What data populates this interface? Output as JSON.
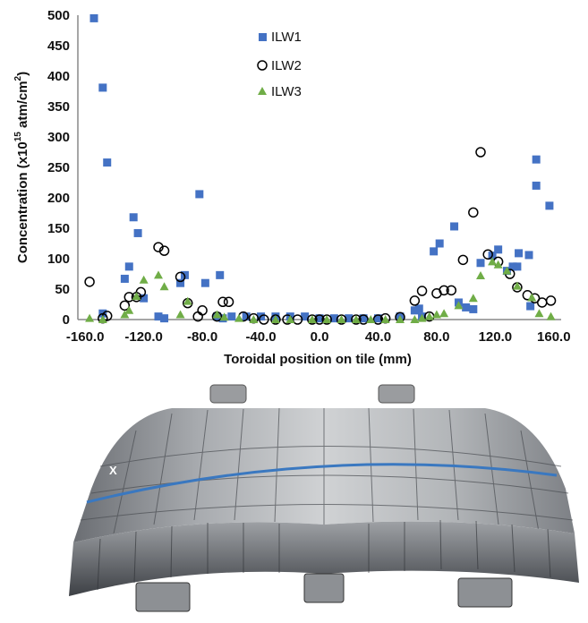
{
  "chart_data": {
    "type": "scatter",
    "xlabel": "Toroidal position on tile (mm)",
    "ylabel_main": "Concentration (x10",
    "ylabel_sup": "15",
    "ylabel_unit": " atm/cm",
    "ylabel_unit_sup": "2",
    "ylabel_end": ")",
    "xlim": [
      -165,
      165
    ],
    "ylim": [
      0,
      500
    ],
    "x_ticks": [
      -160,
      -120,
      -80,
      -40,
      0,
      40,
      80,
      120,
      160
    ],
    "x_tick_labels": [
      "-160.0",
      "-120.0",
      "-80.0",
      "-40.0",
      "0.0",
      "40.0",
      "80.0",
      "120.0",
      "160.0"
    ],
    "y_ticks": [
      0,
      50,
      100,
      150,
      200,
      250,
      300,
      350,
      400,
      450,
      500
    ],
    "y_tick_labels": [
      "0",
      "50",
      "100",
      "150",
      "200",
      "250",
      "300",
      "350",
      "400",
      "450",
      "500"
    ],
    "legend_position": "top-center",
    "series": [
      {
        "name": "ILW1",
        "marker": "square",
        "color": "#4472C4",
        "points": [
          [
            -154,
            495
          ],
          [
            -148,
            381
          ],
          [
            -145,
            258
          ],
          [
            -148,
            10
          ],
          [
            -127,
            168
          ],
          [
            -124,
            142
          ],
          [
            -133,
            67
          ],
          [
            -130,
            87
          ],
          [
            -120,
            35
          ],
          [
            -110,
            5
          ],
          [
            -106,
            2
          ],
          [
            -95,
            60
          ],
          [
            -92,
            73
          ],
          [
            -82,
            206
          ],
          [
            -78,
            60
          ],
          [
            -68,
            73
          ],
          [
            -70,
            5
          ],
          [
            -66,
            2
          ],
          [
            -60,
            5
          ],
          [
            -50,
            5
          ],
          [
            -40,
            5
          ],
          [
            -30,
            5
          ],
          [
            -20,
            5
          ],
          [
            -10,
            5
          ],
          [
            0,
            2
          ],
          [
            10,
            2
          ],
          [
            20,
            2
          ],
          [
            30,
            2
          ],
          [
            40,
            2
          ],
          [
            55,
            5
          ],
          [
            65,
            15
          ],
          [
            68,
            18
          ],
          [
            70,
            5
          ],
          [
            78,
            112
          ],
          [
            82,
            125
          ],
          [
            92,
            153
          ],
          [
            95,
            28
          ],
          [
            100,
            20
          ],
          [
            105,
            17
          ],
          [
            110,
            93
          ],
          [
            118,
            105
          ],
          [
            122,
            115
          ],
          [
            128,
            80
          ],
          [
            132,
            87
          ],
          [
            135,
            87
          ],
          [
            136,
            109
          ],
          [
            143,
            106
          ],
          [
            144,
            22
          ],
          [
            148,
            263
          ],
          [
            148,
            220
          ],
          [
            157,
            187
          ]
        ]
      },
      {
        "name": "ILW2",
        "marker": "circle",
        "color": "#000000",
        "points": [
          [
            -157,
            62
          ],
          [
            -148,
            2
          ],
          [
            -145,
            6
          ],
          [
            -133,
            23
          ],
          [
            -130,
            37
          ],
          [
            -125,
            37
          ],
          [
            -122,
            45
          ],
          [
            -110,
            119
          ],
          [
            -106,
            113
          ],
          [
            -95,
            70
          ],
          [
            -90,
            27
          ],
          [
            -83,
            5
          ],
          [
            -80,
            15
          ],
          [
            -70,
            5
          ],
          [
            -66,
            29
          ],
          [
            -62,
            29
          ],
          [
            -52,
            5
          ],
          [
            -45,
            2
          ],
          [
            -38,
            0
          ],
          [
            -30,
            0
          ],
          [
            -22,
            0
          ],
          [
            -15,
            0
          ],
          [
            -5,
            0
          ],
          [
            0,
            0
          ],
          [
            5,
            0
          ],
          [
            15,
            0
          ],
          [
            25,
            0
          ],
          [
            30,
            0
          ],
          [
            40,
            0
          ],
          [
            45,
            2
          ],
          [
            55,
            4
          ],
          [
            65,
            31
          ],
          [
            70,
            47
          ],
          [
            75,
            5
          ],
          [
            80,
            43
          ],
          [
            85,
            48
          ],
          [
            90,
            48
          ],
          [
            98,
            98
          ],
          [
            105,
            176
          ],
          [
            110,
            275
          ],
          [
            115,
            107
          ],
          [
            122,
            95
          ],
          [
            130,
            75
          ],
          [
            135,
            53
          ],
          [
            142,
            40
          ],
          [
            147,
            35
          ],
          [
            152,
            28
          ],
          [
            158,
            31
          ]
        ]
      },
      {
        "name": "ILW3",
        "marker": "triangle",
        "color": "#70AD47",
        "points": [
          [
            -157,
            2
          ],
          [
            -148,
            0
          ],
          [
            -133,
            8
          ],
          [
            -130,
            15
          ],
          [
            -125,
            38
          ],
          [
            -120,
            65
          ],
          [
            -110,
            73
          ],
          [
            -106,
            54
          ],
          [
            -95,
            8
          ],
          [
            -90,
            30
          ],
          [
            -70,
            8
          ],
          [
            -65,
            4
          ],
          [
            -55,
            2
          ],
          [
            -45,
            0
          ],
          [
            -30,
            0
          ],
          [
            -20,
            0
          ],
          [
            -5,
            0
          ],
          [
            5,
            0
          ],
          [
            15,
            0
          ],
          [
            25,
            0
          ],
          [
            35,
            0
          ],
          [
            45,
            0
          ],
          [
            55,
            0
          ],
          [
            65,
            0
          ],
          [
            70,
            2
          ],
          [
            75,
            5
          ],
          [
            80,
            8
          ],
          [
            85,
            10
          ],
          [
            95,
            23
          ],
          [
            105,
            35
          ],
          [
            110,
            72
          ],
          [
            118,
            95
          ],
          [
            122,
            90
          ],
          [
            128,
            80
          ],
          [
            135,
            55
          ],
          [
            145,
            36
          ],
          [
            150,
            10
          ],
          [
            158,
            5
          ]
        ]
      }
    ]
  },
  "photo": {
    "marker_label": "X",
    "colors": {
      "tile_light": "#c9cbcd",
      "tile_dark": "#5a5d62",
      "line": "#3a78c0"
    }
  }
}
